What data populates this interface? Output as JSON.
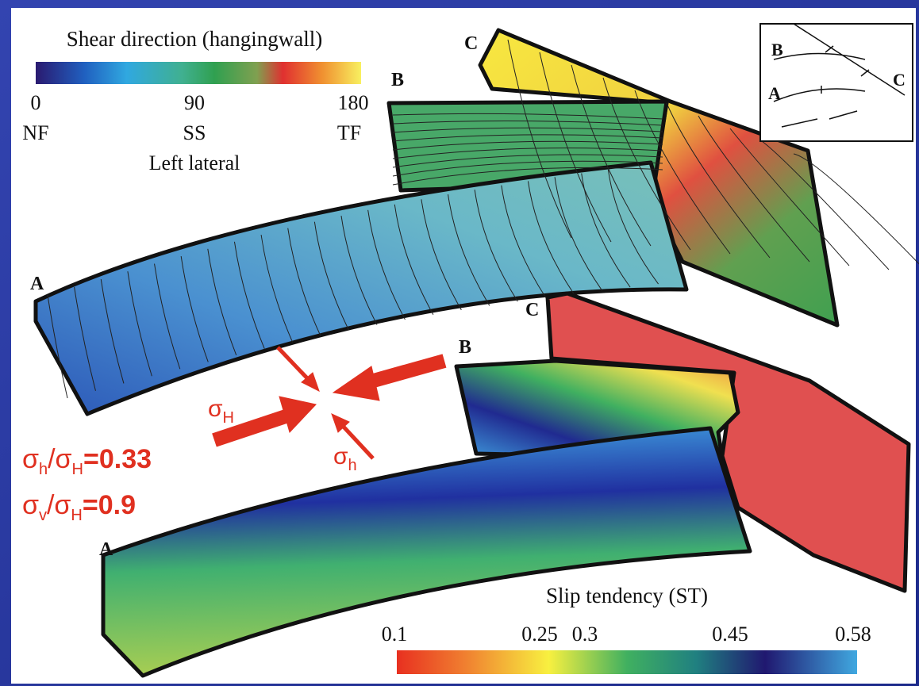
{
  "shear_legend": {
    "title": "Shear direction (hangingwall)",
    "ticks": [
      "0",
      "90",
      "180"
    ],
    "labels": [
      "NF",
      "SS",
      "TF"
    ],
    "note": "Left lateral"
  },
  "upper_faults": [
    "A",
    "B",
    "C"
  ],
  "inset": {
    "labels": [
      "B",
      "A",
      "C"
    ]
  },
  "lower_faults": [
    "A",
    "B",
    "C"
  ],
  "stress": {
    "sigma_H": [
      "σ",
      "H"
    ],
    "sigma_h": [
      "σ",
      "h"
    ],
    "ratio_h": [
      "σ",
      "h",
      "/σ",
      "H",
      "=0.33"
    ],
    "ratio_v": [
      "σ",
      "v",
      "/σ",
      "H",
      "=0.9"
    ]
  },
  "slip_legend": {
    "title": "Slip tendency (ST)",
    "ticks": [
      "0.1",
      "0.25",
      "0.3",
      "0.45",
      "0.58"
    ]
  }
}
